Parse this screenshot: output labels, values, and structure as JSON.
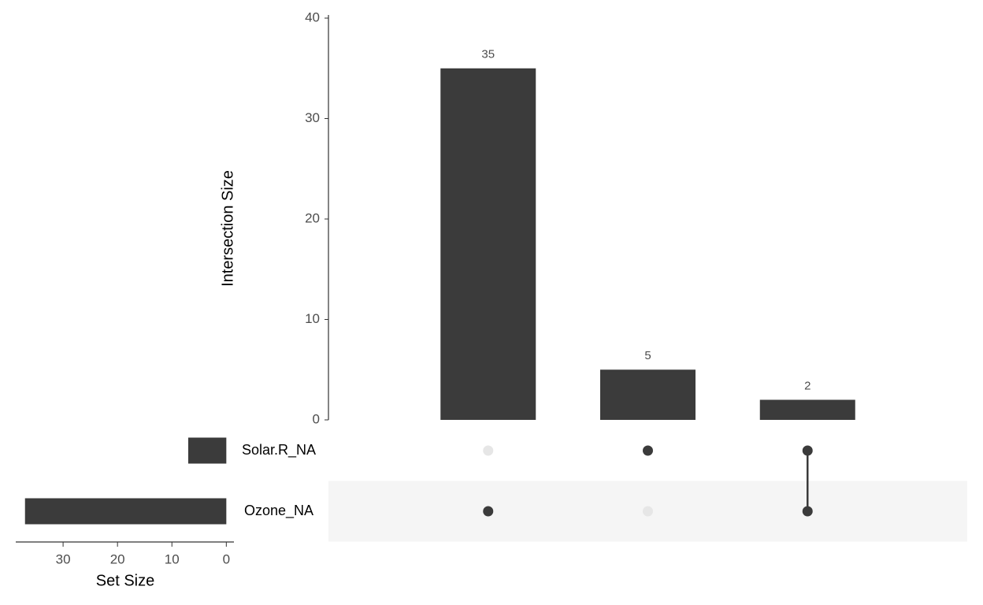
{
  "chart_data": {
    "type": "upset",
    "ylabel": "Intersection Size",
    "xlabel": "Set Size",
    "sets": [
      "Solar.R_NA",
      "Ozone_NA"
    ],
    "set_sizes": [
      7,
      37
    ],
    "values": [
      35,
      5,
      2
    ],
    "matrix": [
      [
        0,
        1,
        1
      ],
      [
        1,
        0,
        1
      ]
    ],
    "ylim": [
      0,
      40
    ],
    "yticks": [
      0,
      10,
      20,
      30,
      40
    ],
    "xlim": [
      38.7,
      -1.4
    ],
    "xticks": [
      30,
      20,
      10,
      0
    ],
    "color": "#3b3b3b",
    "inactive_color": "#e6e6e6",
    "stripe_color": "#f5f5f5"
  }
}
